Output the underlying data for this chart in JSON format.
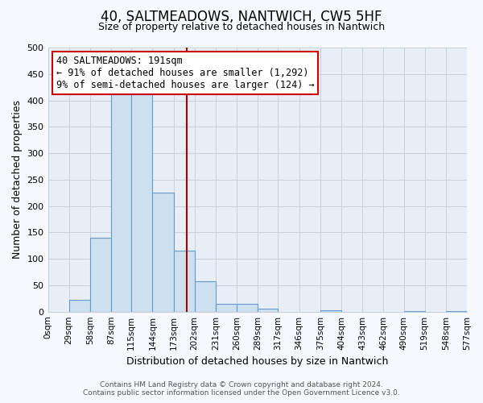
{
  "title": "40, SALTMEADOWS, NANTWICH, CW5 5HF",
  "subtitle": "Size of property relative to detached houses in Nantwich",
  "xlabel": "Distribution of detached houses by size in Nantwich",
  "ylabel": "Number of detached properties",
  "bin_edges": [
    0,
    29,
    58,
    87,
    115,
    144,
    173,
    202,
    231,
    260,
    289,
    317,
    346,
    375,
    404,
    433,
    462,
    490,
    519,
    548,
    577
  ],
  "bin_counts": [
    0,
    22,
    140,
    415,
    415,
    225,
    115,
    57,
    15,
    15,
    5,
    0,
    0,
    2,
    0,
    0,
    0,
    1,
    0,
    1
  ],
  "bar_color": "#cce0f0",
  "bar_edge_color": "#6699cc",
  "vline_x": 191,
  "vline_color": "#aa0000",
  "annotation_title": "40 SALTMEADOWS: 191sqm",
  "annotation_line1": "← 91% of detached houses are smaller (1,292)",
  "annotation_line2": "9% of semi-detached houses are larger (124) →",
  "ylim": [
    0,
    500
  ],
  "yticks": [
    0,
    50,
    100,
    150,
    200,
    250,
    300,
    350,
    400,
    450,
    500
  ],
  "tick_labels": [
    "0sqm",
    "29sqm",
    "58sqm",
    "87sqm",
    "115sqm",
    "144sqm",
    "173sqm",
    "202sqm",
    "231sqm",
    "260sqm",
    "289sqm",
    "317sqm",
    "346sqm",
    "375sqm",
    "404sqm",
    "433sqm",
    "462sqm",
    "490sqm",
    "519sqm",
    "548sqm",
    "577sqm"
  ],
  "footer_line1": "Contains HM Land Registry data © Crown copyright and database right 2024.",
  "footer_line2": "Contains public sector information licensed under the Open Government Licence v3.0.",
  "bg_color": "#f5f8fc",
  "plot_bg_color": "#e8eef5",
  "grid_color": "#c8d0dc",
  "title_fontsize": 12,
  "subtitle_fontsize": 9,
  "annot_fontsize": 8.5,
  "ylabel_fontsize": 9,
  "xlabel_fontsize": 9,
  "tick_fontsize": 7.5,
  "ytick_fontsize": 8
}
